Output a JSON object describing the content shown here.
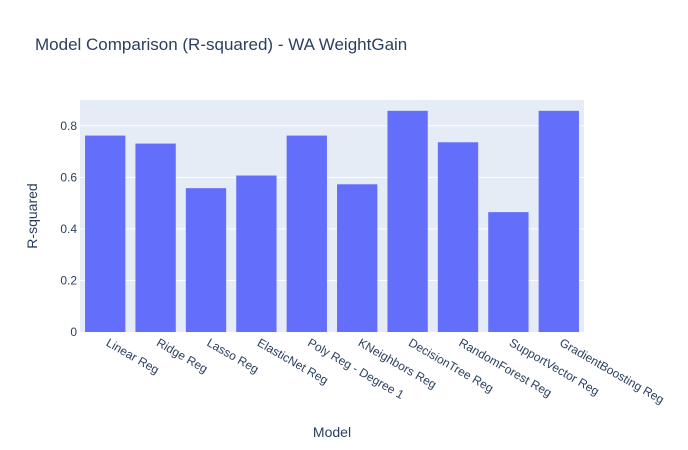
{
  "chart_data": {
    "type": "bar",
    "title": "Model Comparison (R-squared) - WA WeightGain",
    "xlabel": "Model",
    "ylabel": "R-squared",
    "categories": [
      "Linear Reg",
      "Ridge Reg",
      "Lasso Reg",
      "ElasticNet Reg",
      "Poly Reg - Degree 1",
      "KNeighbors Reg",
      "DecisionTree Reg",
      "RandomForest Reg",
      "SupportVector Reg",
      "GradientBoosting Reg"
    ],
    "values": [
      0.762,
      0.731,
      0.558,
      0.607,
      0.762,
      0.573,
      0.858,
      0.736,
      0.465,
      0.858
    ],
    "ylim": [
      0,
      0.9
    ],
    "yticks": [
      0,
      0.2,
      0.4,
      0.6,
      0.8
    ],
    "ytick_labels": [
      "0",
      "0.2",
      "0.4",
      "0.6",
      "0.8"
    ],
    "grid": true,
    "colors": {
      "bar": "#636efa",
      "plot_bg": "#e5ecf6",
      "grid": "#ffffff",
      "text": "#2a3f5f"
    }
  }
}
